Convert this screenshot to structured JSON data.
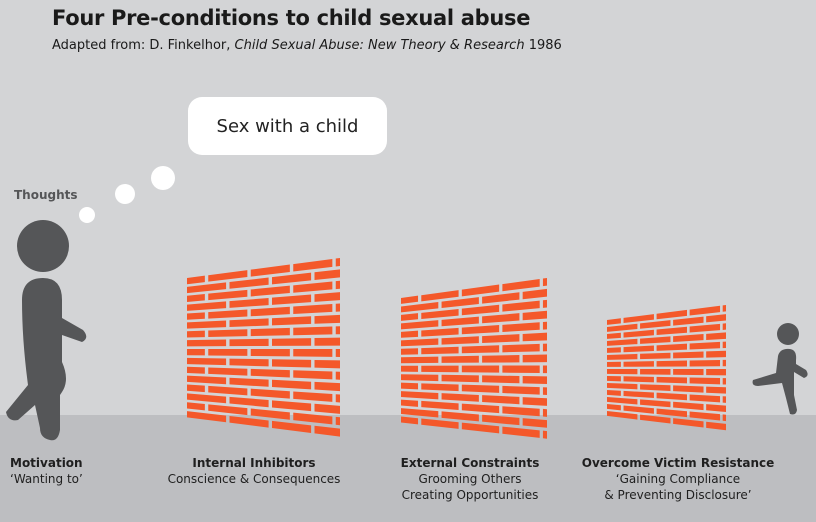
{
  "title": "Four Pre-conditions to child sexual abuse",
  "subtitle": {
    "prefix": "Adapted from: D. Finkelhor, ",
    "book": "Child Sexual Abuse: New Theory & Research",
    "year": " 1986"
  },
  "thought_bubble": "Sex with a child",
  "thoughts_label": "Thoughts",
  "colors": {
    "background": "#d3d4d6",
    "ground": "#bdbec1",
    "brick": "#f4582a",
    "figure": "#555658"
  },
  "stages": [
    {
      "heading": "Motivation",
      "lines": [
        "‘Wanting to’"
      ]
    },
    {
      "heading": "Internal Inhibitors",
      "lines": [
        "Conscience & Consequences"
      ]
    },
    {
      "heading": "External Constraints",
      "lines": [
        "Grooming Others",
        "Creating Opportunities"
      ]
    },
    {
      "heading": "Overcome Victim Resistance",
      "lines": [
        "‘Gaining Compliance",
        "& Preventing Disclosure’"
      ]
    }
  ]
}
